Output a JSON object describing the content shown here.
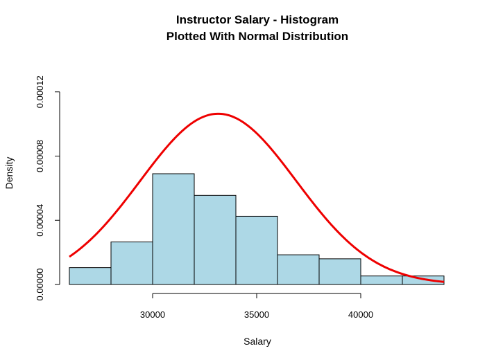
{
  "chart_data": {
    "type": "bar",
    "title": "Instructor Salary - Histogram",
    "subtitle": "Plotted With Normal Distribution",
    "xlabel": "Salary",
    "ylabel": "Density",
    "xlim": [
      26000,
      44000
    ],
    "ylim": [
      0,
      0.000138
    ],
    "x_ticks": [
      30000,
      35000,
      40000
    ],
    "x_tick_labels": [
      "30000",
      "35000",
      "40000"
    ],
    "y_ticks": [
      0,
      4e-05,
      8e-05,
      0.00012
    ],
    "y_tick_labels": [
      "0.00000",
      "0.00004",
      "0.00008",
      "0.00012"
    ],
    "grid": false,
    "bins": [
      {
        "from": 26000,
        "to": 28000,
        "density": 1.05e-05
      },
      {
        "from": 28000,
        "to": 30000,
        "density": 2.65e-05
      },
      {
        "from": 30000,
        "to": 32000,
        "density": 6.9e-05
      },
      {
        "from": 32000,
        "to": 34000,
        "density": 5.55e-05
      },
      {
        "from": 34000,
        "to": 36000,
        "density": 4.25e-05
      },
      {
        "from": 36000,
        "to": 38000,
        "density": 1.85e-05
      },
      {
        "from": 38000,
        "to": 40000,
        "density": 1.6e-05
      },
      {
        "from": 40000,
        "to": 42000,
        "density": 5.3e-06
      },
      {
        "from": 42000,
        "to": 44000,
        "density": 5.3e-06
      }
    ],
    "curve": {
      "type": "normal",
      "mean": 33150,
      "sd": 3750
    },
    "colors": {
      "bar_fill": "#add8e6",
      "bar_stroke": "#000000",
      "curve": "#ee0000"
    }
  }
}
